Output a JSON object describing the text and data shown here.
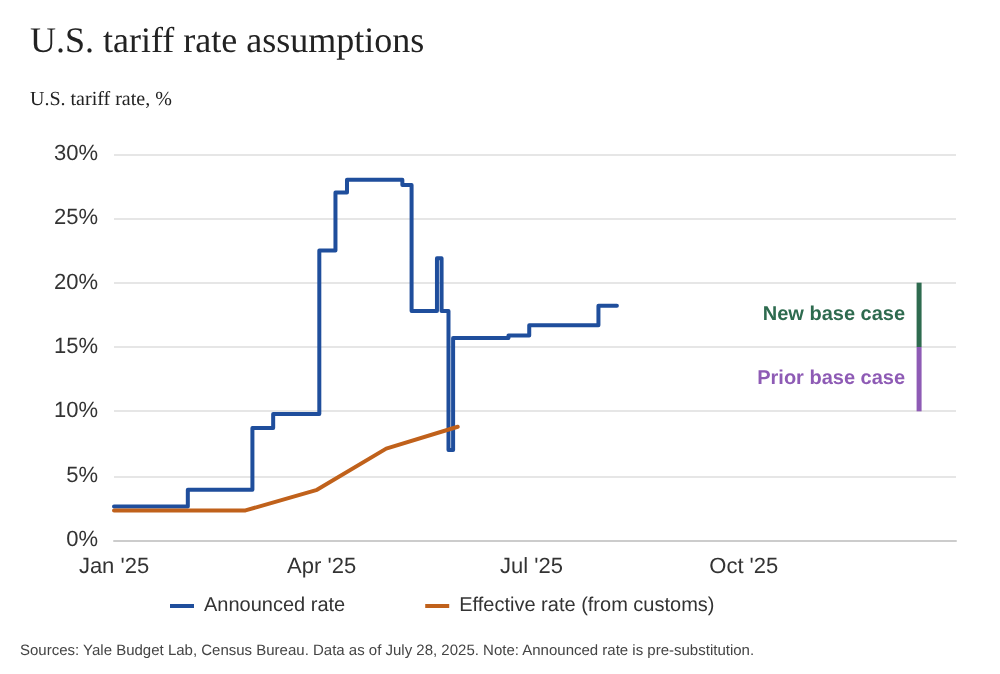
{
  "chart_data": {
    "type": "line",
    "title": "U.S. tariff rate assumptions",
    "ylabel": "U.S. tariff rate, %",
    "series": [
      {
        "name": "Announced rate",
        "type": "step",
        "color": "#1f4e9c",
        "x": [
          "2025-01-01",
          "2025-02-02",
          "2025-03-02",
          "2025-03-11",
          "2025-03-31",
          "2025-04-07",
          "2025-04-12",
          "2025-05-06",
          "2025-05-10",
          "2025-05-21",
          "2025-05-23",
          "2025-05-26",
          "2025-05-28",
          "2025-06-21",
          "2025-06-30",
          "2025-07-30",
          "2025-08-07"
        ],
        "values": [
          2.6,
          3.9,
          8.7,
          9.8,
          22.5,
          27,
          28,
          27.6,
          17.8,
          21.9,
          17.8,
          7,
          15.7,
          15.9,
          16.7,
          18.2,
          18.2
        ]
      },
      {
        "name": "Effective rate (from customs)",
        "color": "#c0611b",
        "x": [
          "2025-01-01",
          "2025-02-27",
          "2025-03-30",
          "2025-04-29",
          "2025-05-30"
        ],
        "values": [
          2.3,
          2.3,
          3.9,
          7.1,
          8.8
        ]
      },
      {
        "name": "New base case",
        "type": "bar",
        "color": "#2e6b4f",
        "x": [
          "2025-12-16"
        ],
        "base": [
          15
        ],
        "values": [
          5
        ]
      },
      {
        "name": "Prior base case",
        "type": "bar",
        "color": "#8e5bb5",
        "x": [
          "2025-12-16"
        ],
        "base": [
          10
        ],
        "values": [
          5
        ]
      }
    ],
    "xlim": [
      "2025-01-01",
      "2026-01-01"
    ],
    "xticks": [
      {
        "value": "2025-01-01",
        "label": "Jan '25"
      },
      {
        "value": "2025-04-01",
        "label": "Apr '25"
      },
      {
        "value": "2025-07-01",
        "label": "Jul '25"
      },
      {
        "value": "2025-10-01",
        "label": "Oct '25"
      }
    ],
    "ylim": [
      0,
      30
    ],
    "yticks": [
      {
        "value": 0,
        "label": "0%"
      },
      {
        "value": 5,
        "label": "5%"
      },
      {
        "value": 10,
        "label": "10%"
      },
      {
        "value": 15,
        "label": "15%"
      },
      {
        "value": 20,
        "label": "20%"
      },
      {
        "value": 25,
        "label": "25%"
      },
      {
        "value": 30,
        "label": "30%"
      }
    ],
    "grid": "y",
    "legend": "bottom",
    "marker": "none",
    "line_style": "solid",
    "annotations": [
      "Sources: Yale Budget Lab, Census Bureau. Data as of July 28, 2025. Note: Announced rate is pre-substitution."
    ]
  }
}
